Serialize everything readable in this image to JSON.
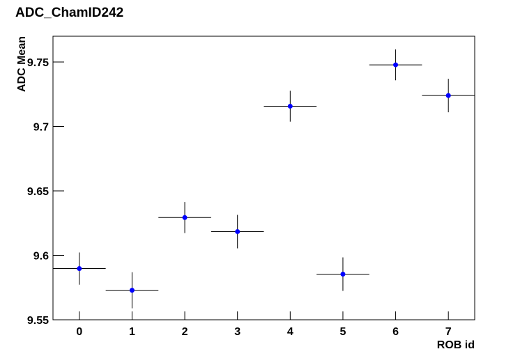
{
  "chart_data": {
    "type": "errorbar",
    "title": "ADC_ChamID242",
    "x_label": "ROB id",
    "y_label": "ADC Mean",
    "x": [
      0,
      1,
      2,
      3,
      4,
      5,
      6,
      7
    ],
    "x_errors": [
      0.5,
      0.5,
      0.5,
      0.5,
      0.5,
      0.5,
      0.5,
      0.5
    ],
    "values": [
      9.5897,
      9.5729,
      9.6293,
      9.6184,
      9.7157,
      9.5854,
      9.7478,
      9.724
    ],
    "errors": [
      0.0125,
      0.014,
      0.012,
      0.013,
      0.012,
      0.013,
      0.012,
      0.013
    ],
    "color": "#0000ff",
    "xlim": [
      -0.5,
      7.5
    ],
    "xticks": [
      0,
      1,
      2,
      3,
      4,
      5,
      6,
      7
    ],
    "ylim": [
      9.55,
      9.77
    ],
    "yticks": [
      9.55,
      9.6,
      9.65,
      9.7,
      9.75
    ]
  }
}
